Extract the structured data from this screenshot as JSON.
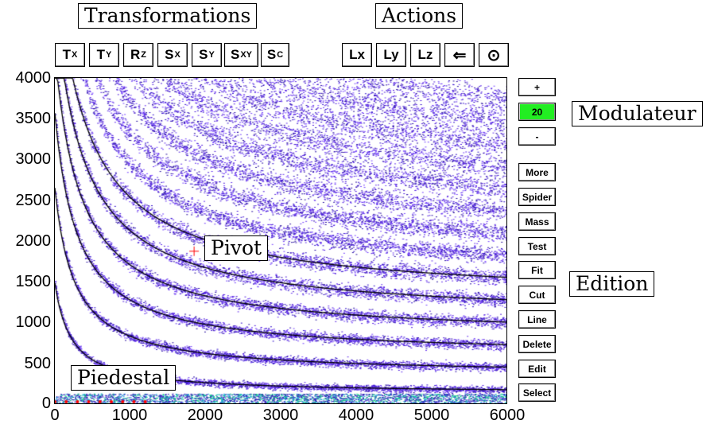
{
  "labels": {
    "transformations": "Transformations",
    "actions": "Actions",
    "modulateur": "Modulateur",
    "edition": "Edition",
    "pivot": "Pivot",
    "piedestal": "Piedestal"
  },
  "transform_buttons": [
    {
      "main": "T",
      "sub": "X"
    },
    {
      "main": "T",
      "sub": "Y"
    },
    {
      "main": "R",
      "sub": "Z"
    },
    {
      "main": "S",
      "sub": "X"
    },
    {
      "main": "S",
      "sub": "Y"
    },
    {
      "main": "S",
      "sub": "XY"
    },
    {
      "main": "S",
      "sub": "C"
    }
  ],
  "action_buttons": [
    "Lx",
    "Ly",
    "Lz",
    "⇐",
    "⊙"
  ],
  "modulateur": {
    "plus": "+",
    "value": "20",
    "minus": "-",
    "value_color": "#22ee22"
  },
  "edition_buttons": [
    "More",
    "Spider",
    "Mass",
    "Test",
    "Fit",
    "Cut",
    "Line",
    "Delete",
    "Edit",
    "Select"
  ],
  "plot": {
    "x_ticks": [
      "0",
      "1000",
      "2000",
      "3000",
      "4000",
      "5000",
      "6000"
    ],
    "y_ticks": [
      "4000",
      "3500",
      "3000",
      "2500",
      "2000",
      "1500",
      "1000",
      "500",
      "0"
    ],
    "xlim": [
      0,
      6000
    ],
    "ylim": [
      0,
      4000
    ],
    "pivot_x": 1850,
    "pivot_y": 1870,
    "point_color": "#5522dd",
    "line_color": "#000000",
    "pivot_color": "#ff0000"
  }
}
